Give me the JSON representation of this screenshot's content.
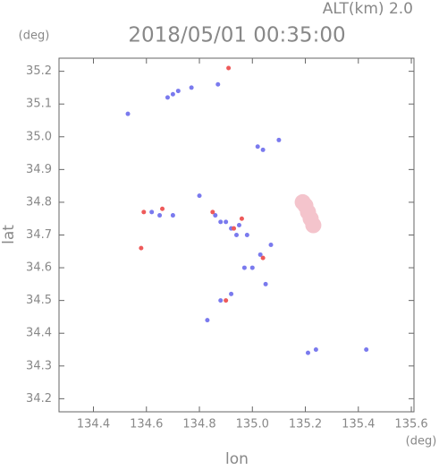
{
  "chart_data": {
    "type": "scatter",
    "title": "2018/05/01 00:35:00",
    "subtitle": "ALT(km) 2.0",
    "x_label": "lon",
    "y_label": "lat",
    "x_unit": "(deg)",
    "y_unit": "(deg)",
    "xlim": [
      134.27,
      135.61
    ],
    "ylim": [
      34.16,
      35.24
    ],
    "xticks": [
      134.4,
      134.6,
      134.8,
      {
        "value": 135,
        "label": "135.0"
      },
      135.2,
      135.4,
      135.6
    ],
    "yticks": [
      34.2,
      34.3,
      34.4,
      34.5,
      34.6,
      34.7,
      34.8,
      34.9,
      {
        "value": 35,
        "label": "35.0"
      },
      35.1,
      35.2
    ],
    "series": [
      {
        "color": "#f4c4cc",
        "marker_size": 9,
        "x": [
          135.2,
          135.21,
          135.22,
          135.19,
          135.23
        ],
        "y": [
          34.79,
          34.77,
          34.75,
          34.8,
          34.73
        ]
      },
      {
        "color": "#7a7aee",
        "marker_size": 2.5,
        "x": [
          134.72,
          134.7,
          134.68,
          134.53,
          134.77,
          134.87,
          135.04,
          135.02,
          135.1,
          134.62,
          134.65,
          134.7,
          134.8,
          134.88,
          134.92,
          134.95,
          134.98,
          135.03,
          135.0,
          134.97,
          135.07,
          135.05,
          134.88,
          134.92,
          134.83,
          135.21,
          135.24,
          135.43,
          134.86,
          134.9,
          134.94
        ],
        "y": [
          35.14,
          35.13,
          35.12,
          35.07,
          35.15,
          35.16,
          34.96,
          34.97,
          34.99,
          34.77,
          34.76,
          34.76,
          34.82,
          34.74,
          34.72,
          34.73,
          34.7,
          34.64,
          34.6,
          34.6,
          34.67,
          34.55,
          34.5,
          34.52,
          34.44,
          34.34,
          34.35,
          34.35,
          34.76,
          34.74,
          34.7
        ]
      },
      {
        "color": "#ee5a5a",
        "marker_size": 2.5,
        "x": [
          134.91,
          134.59,
          134.58,
          134.66,
          134.85,
          134.96,
          135.04,
          134.9,
          134.93
        ],
        "y": [
          35.21,
          34.77,
          34.66,
          34.78,
          34.77,
          34.75,
          34.63,
          34.5,
          34.72
        ]
      }
    ]
  }
}
